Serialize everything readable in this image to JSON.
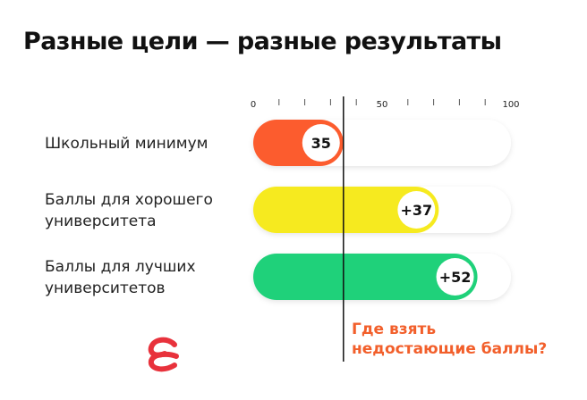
{
  "title": "Разные цели — разные результаты",
  "callout": {
    "lines": [
      "Где взять",
      "недостающие баллы?"
    ],
    "color": "#f25f2b"
  },
  "logo": {
    "name": "brand-logo",
    "color": "#e8323c"
  },
  "chart_data": {
    "type": "bar",
    "orientation": "horizontal",
    "title": "Разные цели — разные результаты",
    "xlim": [
      0,
      100
    ],
    "x_tick_labels": [
      "0",
      "50",
      "100"
    ],
    "grid": false,
    "reference_line": {
      "x": 35
    },
    "categories": [
      [
        "Школьный минимум"
      ],
      [
        "Баллы для хорошего",
        "университета"
      ],
      [
        "Баллы для лучших",
        "университетов"
      ]
    ],
    "values": [
      35,
      72,
      87
    ],
    "data_labels": [
      "35",
      "+37",
      "+52"
    ],
    "colors": [
      "#fc5c2e",
      "#f6ea1f",
      "#1fd17a"
    ]
  }
}
